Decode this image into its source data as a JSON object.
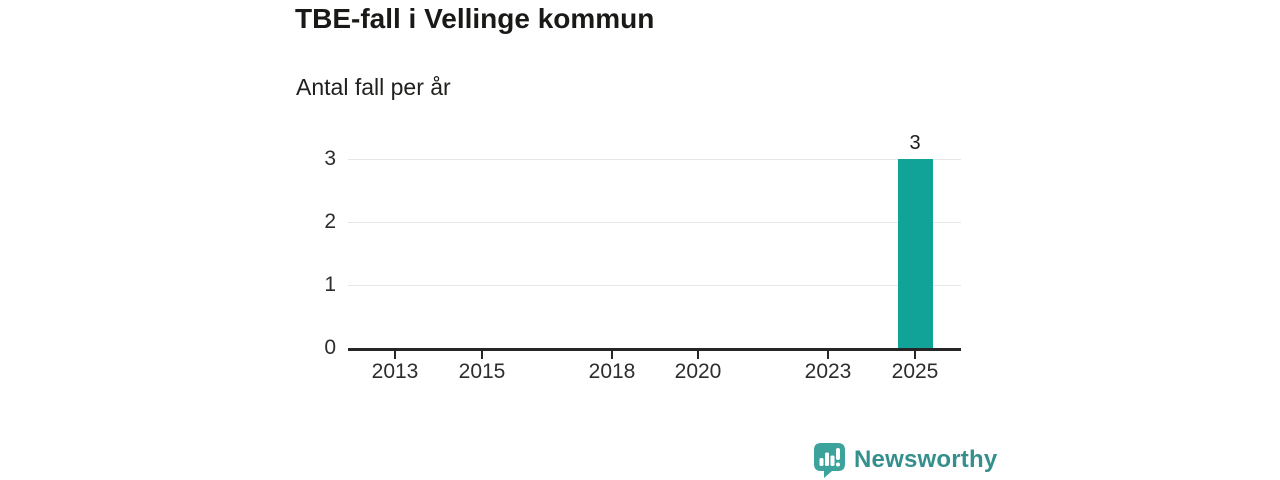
{
  "chart_data": {
    "type": "bar",
    "title": "TBE-fall i Vellinge kommun",
    "subtitle": "Antal fall per år",
    "xlabel": "",
    "ylabel": "",
    "ylim": [
      0,
      3
    ],
    "y_ticks": [
      0,
      1,
      2,
      3
    ],
    "x_tick_years": [
      2013,
      2015,
      2018,
      2020,
      2023,
      2025
    ],
    "grid": "horizontal-only",
    "legend": "none",
    "bars": [
      {
        "x": 2025,
        "value": 3,
        "label": "3"
      }
    ],
    "bar_color": "#11a398"
  },
  "branding": {
    "name": "Newsworthy",
    "logo_icon": "speech-bubble-bar-chart-icon",
    "accent_color": "#3ba39c",
    "text_color": "#35908d"
  },
  "colors": {
    "background": "#ffffff",
    "axis": "#262626",
    "gridline": "#e7e7e7",
    "tick_label": "#2d2d2d",
    "title_text": "#191917"
  }
}
